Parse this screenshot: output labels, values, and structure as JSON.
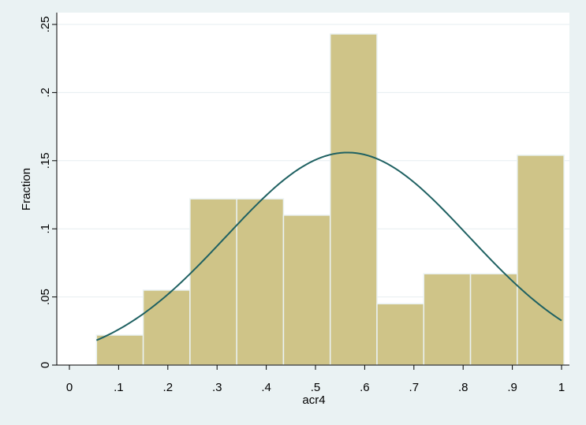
{
  "chart_data": {
    "type": "bar",
    "title": "",
    "xlabel": "acr4",
    "ylabel": "Fraction",
    "xlim": [
      0,
      1
    ],
    "ylim": [
      0,
      0.25
    ],
    "grid": true,
    "x_ticks": [
      {
        "value": 0,
        "label": "0"
      },
      {
        "value": 0.1,
        "label": ".1"
      },
      {
        "value": 0.2,
        "label": ".2"
      },
      {
        "value": 0.3,
        "label": ".3"
      },
      {
        "value": 0.4,
        "label": ".4"
      },
      {
        "value": 0.5,
        "label": ".5"
      },
      {
        "value": 0.6,
        "label": ".6"
      },
      {
        "value": 0.7,
        "label": ".7"
      },
      {
        "value": 0.8,
        "label": ".8"
      },
      {
        "value": 0.9,
        "label": ".9"
      },
      {
        "value": 1,
        "label": "1"
      }
    ],
    "y_ticks": [
      {
        "value": 0,
        "label": "0"
      },
      {
        "value": 0.05,
        "label": ".05"
      },
      {
        "value": 0.1,
        "label": ".1"
      },
      {
        "value": 0.15,
        "label": ".15"
      },
      {
        "value": 0.2,
        "label": ".2"
      },
      {
        "value": 0.25,
        "label": ".25"
      }
    ],
    "bins": [
      {
        "x0": 0.055,
        "x1": 0.15,
        "value": 0.022
      },
      {
        "x0": 0.15,
        "x1": 0.245,
        "value": 0.055
      },
      {
        "x0": 0.245,
        "x1": 0.34,
        "value": 0.122
      },
      {
        "x0": 0.34,
        "x1": 0.435,
        "value": 0.122
      },
      {
        "x0": 0.435,
        "x1": 0.53,
        "value": 0.11
      },
      {
        "x0": 0.53,
        "x1": 0.625,
        "value": 0.243
      },
      {
        "x0": 0.625,
        "x1": 0.72,
        "value": 0.045
      },
      {
        "x0": 0.72,
        "x1": 0.815,
        "value": 0.067
      },
      {
        "x0": 0.815,
        "x1": 0.91,
        "value": 0.067
      },
      {
        "x0": 0.91,
        "x1": 1.005,
        "value": 0.154
      }
    ],
    "normal_overlay": {
      "mean": 0.565,
      "sd": 0.246,
      "peak": 0.156,
      "x_range": [
        0.055,
        1.0
      ]
    },
    "colors": {
      "bar_fill": "#cfc488",
      "bar_edge": "#eaf2f3",
      "curve": "#1f6162",
      "plot_bg": "#ffffff",
      "outer_bg": "#eaf2f3",
      "grid": "#e6eef0"
    }
  }
}
